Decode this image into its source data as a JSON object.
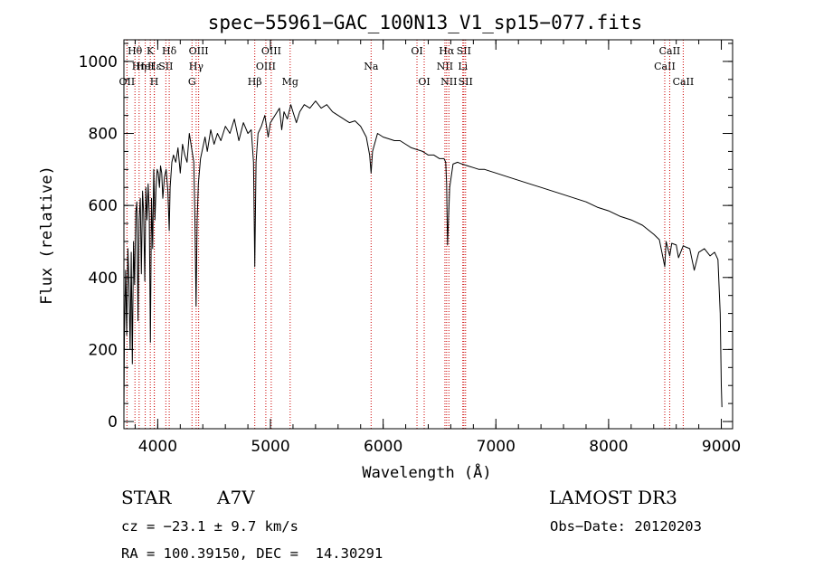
{
  "chart_data": {
    "type": "line",
    "title": "spec−55961−GAC_100N13_V1_sp15−077.fits",
    "xlabel": "Wavelength (Å)",
    "ylabel": "Flux (relative)",
    "xlim": [
      3700,
      9100
    ],
    "ylim": [
      -20,
      1060
    ],
    "xticks": [
      4000,
      5000,
      6000,
      7000,
      8000,
      9000
    ],
    "xtick_labels": [
      "4000",
      "5000",
      "6000",
      "7000",
      "8000",
      "9000"
    ],
    "yticks": [
      0,
      200,
      400,
      600,
      800,
      1000
    ],
    "ytick_labels": [
      "0",
      "200",
      "400",
      "600",
      "800",
      "1000"
    ],
    "x_minor_step": 200,
    "y_minor_step": 50,
    "series": [
      {
        "name": "spectrum",
        "color": "#000000",
        "x": [
          3700,
          3705,
          3715,
          3725,
          3735,
          3745,
          3755,
          3765,
          3775,
          3785,
          3795,
          3805,
          3815,
          3825,
          3835,
          3845,
          3855,
          3865,
          3875,
          3885,
          3895,
          3905,
          3915,
          3925,
          3935,
          3945,
          3955,
          3965,
          3975,
          3985,
          3995,
          4005,
          4015,
          4025,
          4035,
          4045,
          4060,
          4075,
          4090,
          4102,
          4110,
          4125,
          4140,
          4160,
          4180,
          4200,
          4220,
          4240,
          4260,
          4280,
          4300,
          4320,
          4330,
          4340,
          4350,
          4360,
          4380,
          4400,
          4420,
          4440,
          4470,
          4500,
          4530,
          4560,
          4600,
          4640,
          4680,
          4720,
          4760,
          4800,
          4830,
          4850,
          4861,
          4872,
          4890,
          4920,
          4950,
          4980,
          5000,
          5040,
          5080,
          5100,
          5120,
          5150,
          5180,
          5200,
          5230,
          5260,
          5300,
          5350,
          5400,
          5450,
          5500,
          5550,
          5600,
          5650,
          5700,
          5750,
          5800,
          5850,
          5880,
          5893,
          5906,
          5950,
          6000,
          6050,
          6100,
          6150,
          6200,
          6250,
          6300,
          6350,
          6400,
          6450,
          6500,
          6540,
          6555,
          6563,
          6571,
          6590,
          6620,
          6660,
          6700,
          6750,
          6800,
          6850,
          6900,
          6950,
          7000,
          7100,
          7200,
          7300,
          7400,
          7500,
          7600,
          7700,
          7800,
          7900,
          8000,
          8100,
          8200,
          8300,
          8400,
          8450,
          8498,
          8510,
          8542,
          8560,
          8600,
          8620,
          8662,
          8680,
          8720,
          8760,
          8800,
          8850,
          8900,
          8940,
          8970,
          8990,
          9000,
          9005
        ],
        "values": [
          20,
          250,
          420,
          240,
          480,
          380,
          200,
          470,
          160,
          500,
          380,
          580,
          610,
          280,
          560,
          620,
          410,
          640,
          580,
          390,
          650,
          560,
          660,
          580,
          220,
          620,
          480,
          700,
          560,
          650,
          700,
          690,
          650,
          710,
          690,
          620,
          680,
          700,
          640,
          530,
          650,
          720,
          740,
          720,
          760,
          690,
          770,
          740,
          720,
          800,
          760,
          720,
          560,
          320,
          560,
          660,
          730,
          760,
          790,
          750,
          810,
          770,
          800,
          780,
          820,
          800,
          840,
          780,
          830,
          800,
          810,
          720,
          430,
          720,
          800,
          820,
          850,
          790,
          830,
          850,
          870,
          810,
          860,
          840,
          880,
          860,
          830,
          860,
          880,
          870,
          890,
          870,
          880,
          860,
          850,
          840,
          830,
          835,
          820,
          790,
          740,
          690,
          750,
          800,
          790,
          785,
          780,
          780,
          770,
          760,
          755,
          750,
          740,
          740,
          730,
          730,
          720,
          660,
          490,
          650,
          715,
          720,
          715,
          710,
          705,
          700,
          700,
          695,
          690,
          680,
          670,
          660,
          650,
          640,
          630,
          620,
          610,
          595,
          585,
          570,
          560,
          545,
          520,
          505,
          430,
          500,
          460,
          495,
          490,
          455,
          488,
          485,
          480,
          420,
          470,
          480,
          460,
          470,
          450,
          300,
          100,
          40
        ]
      }
    ],
    "line_color": "#cc0000",
    "spectral_lines": [
      {
        "wavelength": 3727,
        "label": "OII",
        "row": 3
      },
      {
        "wavelength": 3798,
        "label": "Hθ",
        "row": 1
      },
      {
        "wavelength": 3835,
        "label": "Hη",
        "row": 2
      },
      {
        "wavelength": 3889,
        "label": "HeI",
        "row": 2
      },
      {
        "wavelength": 3934,
        "label": "K",
        "row": 1
      },
      {
        "wavelength": 3970,
        "label": "Hε",
        "row": 2
      },
      {
        "wavelength": 3969,
        "label": "H",
        "row": 3
      },
      {
        "wavelength": 4072,
        "label": "SII",
        "row": 2
      },
      {
        "wavelength": 4102,
        "label": "Hδ",
        "row": 1
      },
      {
        "wavelength": 4304,
        "label": "G",
        "row": 3
      },
      {
        "wavelength": 4341,
        "label": "Hγ",
        "row": 2
      },
      {
        "wavelength": 4363,
        "label": "OIII",
        "row": 1
      },
      {
        "wavelength": 4861,
        "label": "Hβ",
        "row": 3
      },
      {
        "wavelength": 4959,
        "label": "OIII",
        "row": 2
      },
      {
        "wavelength": 5007,
        "label": "OIII",
        "row": 1
      },
      {
        "wavelength": 5175,
        "label": "Mg",
        "row": 3
      },
      {
        "wavelength": 5893,
        "label": "Na",
        "row": 2
      },
      {
        "wavelength": 6300,
        "label": "OI",
        "row": 1
      },
      {
        "wavelength": 6364,
        "label": "OI",
        "row": 3
      },
      {
        "wavelength": 6548,
        "label": "NII",
        "row": 2
      },
      {
        "wavelength": 6563,
        "label": "Hα",
        "row": 1
      },
      {
        "wavelength": 6583,
        "label": "NII",
        "row": 3
      },
      {
        "wavelength": 6707,
        "label": "Li",
        "row": 2
      },
      {
        "wavelength": 6716,
        "label": "SII",
        "row": 1
      },
      {
        "wavelength": 6731,
        "label": "SII",
        "row": 3
      },
      {
        "wavelength": 8498,
        "label": "CaII",
        "row": 2
      },
      {
        "wavelength": 8542,
        "label": "CaII",
        "row": 1
      },
      {
        "wavelength": 8662,
        "label": "CaII",
        "row": 3
      }
    ]
  },
  "info": {
    "class": "STAR",
    "subclass": "A7V",
    "survey": "LAMOST DR3",
    "redshift": "cz = −23.1 ± 9.7 km/s",
    "obs_date": "Obs−Date: 20120203",
    "coords": "RA = 100.39150, DEC =  14.30291"
  }
}
